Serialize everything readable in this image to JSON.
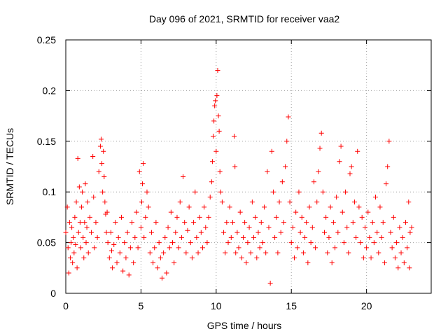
{
  "chart_data": {
    "type": "scatter",
    "title": "Day 096 of 2021, SRMTID for receiver vaa2",
    "xlabel": "GPS time / hours",
    "ylabel": "SRMTID / TECUs",
    "xlim": [
      0,
      24.3
    ],
    "ylim": [
      0,
      0.25
    ],
    "x_ticks": [
      0,
      5,
      10,
      15,
      20
    ],
    "x_tick_labels": [
      "0",
      "5",
      "10",
      "15",
      "20"
    ],
    "y_ticks": [
      0,
      0.05,
      0.1,
      0.15,
      0.2,
      0.25
    ],
    "y_tick_labels": [
      "0",
      "0.05",
      "0.1",
      "0.15",
      "0.2",
      "0.25"
    ],
    "grid": true,
    "marker": "+",
    "color": "#ff0000",
    "series": [
      {
        "name": "SRMTID",
        "points": [
          [
            0.0,
            0.06
          ],
          [
            0.1,
            0.085
          ],
          [
            0.15,
            0.045
          ],
          [
            0.2,
            0.02
          ],
          [
            0.25,
            0.07
          ],
          [
            0.3,
            0.035
          ],
          [
            0.35,
            0.05
          ],
          [
            0.4,
            0.065
          ],
          [
            0.45,
            0.03
          ],
          [
            0.5,
            0.055
          ],
          [
            0.55,
            0.04
          ],
          [
            0.6,
            0.075
          ],
          [
            0.65,
            0.048
          ],
          [
            0.7,
            0.09
          ],
          [
            0.75,
            0.025
          ],
          [
            0.8,
            0.133
          ],
          [
            0.85,
            0.06
          ],
          [
            0.9,
            0.105
          ],
          [
            0.95,
            0.07
          ],
          [
            1.0,
            0.045
          ],
          [
            1.05,
            0.085
          ],
          [
            1.1,
            0.1
          ],
          [
            1.15,
            0.055
          ],
          [
            1.2,
            0.035
          ],
          [
            1.25,
            0.07
          ],
          [
            1.3,
            0.108
          ],
          [
            1.35,
            0.05
          ],
          [
            1.4,
            0.065
          ],
          [
            1.45,
            0.09
          ],
          [
            1.5,
            0.04
          ],
          [
            1.6,
            0.075
          ],
          [
            1.7,
            0.06
          ],
          [
            1.8,
            0.135
          ],
          [
            1.85,
            0.095
          ],
          [
            1.9,
            0.045
          ],
          [
            2.0,
            0.07
          ],
          [
            2.1,
            0.055
          ],
          [
            2.2,
            0.12
          ],
          [
            2.3,
            0.145
          ],
          [
            2.35,
            0.152
          ],
          [
            2.4,
            0.128
          ],
          [
            2.45,
            0.1
          ],
          [
            2.5,
            0.14
          ],
          [
            2.55,
            0.115
          ],
          [
            2.6,
            0.09
          ],
          [
            2.65,
            0.078
          ],
          [
            2.7,
            0.06
          ],
          [
            2.75,
            0.08
          ],
          [
            2.8,
            0.05
          ],
          [
            2.9,
            0.035
          ],
          [
            3.0,
            0.06
          ],
          [
            3.05,
            0.042
          ],
          [
            3.1,
            0.025
          ],
          [
            3.2,
            0.048
          ],
          [
            3.3,
            0.07
          ],
          [
            3.4,
            0.03
          ],
          [
            3.5,
            0.055
          ],
          [
            3.6,
            0.04
          ],
          [
            3.7,
            0.075
          ],
          [
            3.8,
            0.022
          ],
          [
            3.9,
            0.05
          ],
          [
            4.0,
            0.035
          ],
          [
            4.1,
            0.06
          ],
          [
            4.2,
            0.018
          ],
          [
            4.3,
            0.045
          ],
          [
            4.4,
            0.07
          ],
          [
            4.5,
            0.03
          ],
          [
            4.6,
            0.055
          ],
          [
            4.7,
            0.08
          ],
          [
            4.8,
            0.045
          ],
          [
            4.9,
            0.12
          ],
          [
            5.0,
            0.065
          ],
          [
            5.05,
            0.09
          ],
          [
            5.1,
            0.108
          ],
          [
            5.15,
            0.128
          ],
          [
            5.2,
            0.055
          ],
          [
            5.3,
            0.075
          ],
          [
            5.4,
            0.1
          ],
          [
            5.5,
            0.085
          ],
          [
            5.6,
            0.04
          ],
          [
            5.7,
            0.06
          ],
          [
            5.8,
            0.03
          ],
          [
            5.9,
            0.045
          ],
          [
            6.0,
            0.07
          ],
          [
            6.1,
            0.025
          ],
          [
            6.2,
            0.05
          ],
          [
            6.3,
            0.035
          ],
          [
            6.4,
            0.015
          ],
          [
            6.5,
            0.04
          ],
          [
            6.6,
            0.055
          ],
          [
            6.7,
            0.02
          ],
          [
            6.8,
            0.065
          ],
          [
            6.9,
            0.045
          ],
          [
            7.0,
            0.08
          ],
          [
            7.1,
            0.05
          ],
          [
            7.2,
            0.03
          ],
          [
            7.3,
            0.06
          ],
          [
            7.4,
            0.075
          ],
          [
            7.5,
            0.045
          ],
          [
            7.6,
            0.09
          ],
          [
            7.7,
            0.055
          ],
          [
            7.8,
            0.115
          ],
          [
            7.9,
            0.07
          ],
          [
            8.0,
            0.04
          ],
          [
            8.1,
            0.062
          ],
          [
            8.2,
            0.085
          ],
          [
            8.3,
            0.05
          ],
          [
            8.4,
            0.035
          ],
          [
            8.5,
            0.07
          ],
          [
            8.6,
            0.1
          ],
          [
            8.7,
            0.055
          ],
          [
            8.8,
            0.04
          ],
          [
            8.9,
            0.075
          ],
          [
            9.0,
            0.06
          ],
          [
            9.1,
            0.045
          ],
          [
            9.2,
            0.085
          ],
          [
            9.3,
            0.065
          ],
          [
            9.4,
            0.05
          ],
          [
            9.5,
            0.075
          ],
          [
            9.6,
            0.095
          ],
          [
            9.7,
            0.11
          ],
          [
            9.75,
            0.13
          ],
          [
            9.8,
            0.155
          ],
          [
            9.85,
            0.17
          ],
          [
            9.9,
            0.185
          ],
          [
            9.95,
            0.19
          ],
          [
            10.0,
            0.14
          ],
          [
            10.05,
            0.195
          ],
          [
            10.1,
            0.22
          ],
          [
            10.15,
            0.175
          ],
          [
            10.2,
            0.16
          ],
          [
            10.25,
            0.12
          ],
          [
            10.3,
            0.1
          ],
          [
            10.4,
            0.09
          ],
          [
            10.5,
            0.06
          ],
          [
            10.6,
            0.04
          ],
          [
            10.7,
            0.07
          ],
          [
            10.8,
            0.05
          ],
          [
            10.9,
            0.085
          ],
          [
            11.0,
            0.055
          ],
          [
            11.1,
            0.07
          ],
          [
            11.2,
            0.155
          ],
          [
            11.25,
            0.125
          ],
          [
            11.3,
            0.04
          ],
          [
            11.4,
            0.06
          ],
          [
            11.5,
            0.045
          ],
          [
            11.6,
            0.08
          ],
          [
            11.7,
            0.035
          ],
          [
            11.8,
            0.055
          ],
          [
            11.9,
            0.07
          ],
          [
            12.0,
            0.03
          ],
          [
            12.1,
            0.05
          ],
          [
            12.2,
            0.065
          ],
          [
            12.3,
            0.04
          ],
          [
            12.4,
            0.09
          ],
          [
            12.5,
            0.055
          ],
          [
            12.6,
            0.075
          ],
          [
            12.7,
            0.035
          ],
          [
            12.8,
            0.06
          ],
          [
            12.9,
            0.045
          ],
          [
            13.0,
            0.07
          ],
          [
            13.1,
            0.05
          ],
          [
            13.2,
            0.085
          ],
          [
            13.3,
            0.04
          ],
          [
            13.4,
            0.12
          ],
          [
            13.5,
            0.065
          ],
          [
            13.6,
            0.01
          ],
          [
            13.7,
            0.14
          ],
          [
            13.8,
            0.1
          ],
          [
            13.9,
            0.055
          ],
          [
            14.0,
            0.075
          ],
          [
            14.1,
            0.04
          ],
          [
            14.2,
            0.09
          ],
          [
            14.3,
            0.06
          ],
          [
            14.4,
            0.11
          ],
          [
            14.5,
            0.07
          ],
          [
            14.6,
            0.125
          ],
          [
            14.7,
            0.15
          ],
          [
            14.8,
            0.174
          ],
          [
            14.9,
            0.09
          ],
          [
            15.0,
            0.05
          ],
          [
            15.1,
            0.065
          ],
          [
            15.2,
            0.035
          ],
          [
            15.3,
            0.08
          ],
          [
            15.4,
            0.045
          ],
          [
            15.5,
            0.1
          ],
          [
            15.6,
            0.06
          ],
          [
            15.7,
            0.075
          ],
          [
            15.8,
            0.04
          ],
          [
            15.9,
            0.055
          ],
          [
            16.0,
            0.07
          ],
          [
            16.1,
            0.03
          ],
          [
            16.2,
            0.085
          ],
          [
            16.3,
            0.05
          ],
          [
            16.4,
            0.065
          ],
          [
            16.5,
            0.11
          ],
          [
            16.6,
            0.045
          ],
          [
            16.7,
            0.09
          ],
          [
            16.8,
            0.12
          ],
          [
            16.9,
            0.143
          ],
          [
            17.0,
            0.158
          ],
          [
            17.1,
            0.1
          ],
          [
            17.2,
            0.06
          ],
          [
            17.3,
            0.075
          ],
          [
            17.4,
            0.04
          ],
          [
            17.5,
            0.055
          ],
          [
            17.6,
            0.085
          ],
          [
            17.7,
            0.03
          ],
          [
            17.8,
            0.07
          ],
          [
            17.9,
            0.045
          ],
          [
            18.0,
            0.095
          ],
          [
            18.1,
            0.06
          ],
          [
            18.2,
            0.13
          ],
          [
            18.3,
            0.145
          ],
          [
            18.4,
            0.08
          ],
          [
            18.5,
            0.05
          ],
          [
            18.6,
            0.1
          ],
          [
            18.7,
            0.065
          ],
          [
            18.8,
            0.04
          ],
          [
            18.9,
            0.118
          ],
          [
            19.0,
            0.125
          ],
          [
            19.1,
            0.07
          ],
          [
            19.2,
            0.09
          ],
          [
            19.3,
            0.055
          ],
          [
            19.4,
            0.14
          ],
          [
            19.5,
            0.085
          ],
          [
            19.6,
            0.05
          ],
          [
            19.7,
            0.075
          ],
          [
            19.8,
            0.035
          ],
          [
            19.9,
            0.065
          ],
          [
            20.0,
            0.045
          ],
          [
            20.1,
            0.08
          ],
          [
            20.2,
            0.055
          ],
          [
            20.3,
            0.035
          ],
          [
            20.4,
            0.07
          ],
          [
            20.5,
            0.05
          ],
          [
            20.6,
            0.095
          ],
          [
            20.7,
            0.06
          ],
          [
            20.8,
            0.04
          ],
          [
            20.9,
            0.085
          ],
          [
            21.0,
            0.055
          ],
          [
            21.1,
            0.07
          ],
          [
            21.2,
            0.03
          ],
          [
            21.3,
            0.108
          ],
          [
            21.4,
            0.125
          ],
          [
            21.5,
            0.15
          ],
          [
            21.6,
            0.06
          ],
          [
            21.7,
            0.045
          ],
          [
            21.8,
            0.075
          ],
          [
            21.9,
            0.035
          ],
          [
            22.0,
            0.05
          ],
          [
            22.1,
            0.025
          ],
          [
            22.2,
            0.065
          ],
          [
            22.3,
            0.04
          ],
          [
            22.4,
            0.055
          ],
          [
            22.5,
            0.03
          ],
          [
            22.6,
            0.07
          ],
          [
            22.7,
            0.045
          ],
          [
            22.8,
            0.09
          ],
          [
            22.85,
            0.025
          ],
          [
            22.9,
            0.06
          ],
          [
            23.0,
            0.065
          ]
        ]
      }
    ]
  }
}
